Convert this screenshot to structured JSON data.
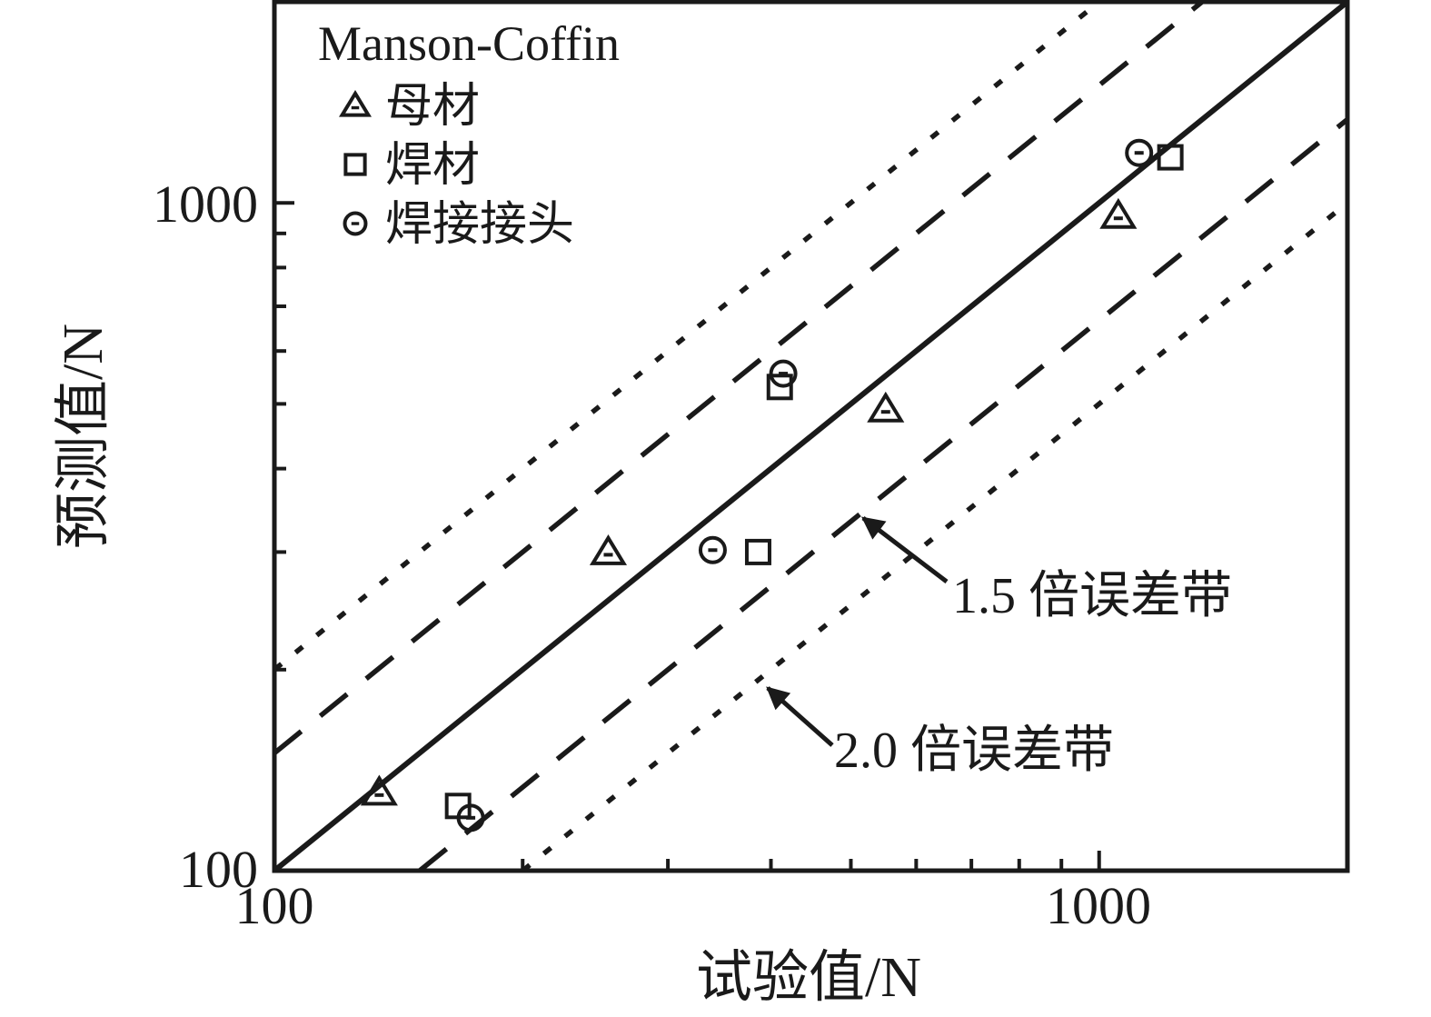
{
  "figure": {
    "background": "#ffffff",
    "ink_color": "#1a1a1a"
  },
  "chart_data": {
    "type": "scatter",
    "xlabel": "试验值/N",
    "ylabel": "预测值/N",
    "xscale": "log",
    "yscale": "log",
    "xlim": [
      100,
      2000
    ],
    "ylim": [
      100,
      2000
    ],
    "grid": false,
    "x_ticks": {
      "major": [
        100,
        1000
      ],
      "major_labels": [
        "100",
        "1000"
      ],
      "minor": [
        200,
        300,
        400,
        500,
        600,
        700,
        800,
        900
      ]
    },
    "y_ticks": {
      "major": [
        100,
        1000
      ],
      "major_labels": [
        "100",
        "1000"
      ],
      "minor": [
        200,
        300,
        400,
        500,
        600,
        700,
        800,
        900
      ]
    },
    "legend": {
      "title": "Manson-Coffin",
      "position": "top-left",
      "items": [
        {
          "marker": "triangle",
          "label": "母材"
        },
        {
          "marker": "square",
          "label": "焊材"
        },
        {
          "marker": "circle-dot",
          "label": "焊接接头"
        }
      ]
    },
    "series": [
      {
        "name": "母材",
        "marker": "triangle",
        "points": [
          [
            134,
            131
          ],
          [
            254,
            300
          ],
          [
            551,
            491
          ],
          [
            1055,
            957
          ]
        ]
      },
      {
        "name": "焊材",
        "marker": "square",
        "points": [
          [
            167,
            125
          ],
          [
            386,
            300
          ],
          [
            410,
            530
          ],
          [
            1220,
            1170
          ]
        ]
      },
      {
        "name": "焊接接头",
        "marker": "circle-dot",
        "points": [
          [
            173,
            120
          ],
          [
            340,
            302
          ],
          [
            414,
            555
          ],
          [
            1118,
            1188
          ]
        ]
      }
    ],
    "reference_lines": [
      {
        "name": "identity-line",
        "factor": 1,
        "style": "solid"
      },
      {
        "name": "error-band-1.5-upper",
        "factor": 1.5,
        "style": "dashed"
      },
      {
        "name": "error-band-1.5-lower",
        "factor": 0.6667,
        "style": "dashed"
      },
      {
        "name": "error-band-2.0-upper",
        "factor": 2,
        "style": "dotted"
      },
      {
        "name": "error-band-2.0-lower",
        "factor": 0.5,
        "style": "dotted"
      }
    ],
    "annotations": [
      {
        "text": "1.5 倍误差带",
        "target": "error-band-1.5-lower"
      },
      {
        "text": "2.0 倍误差带",
        "target": "error-band-2.0-lower"
      }
    ]
  }
}
